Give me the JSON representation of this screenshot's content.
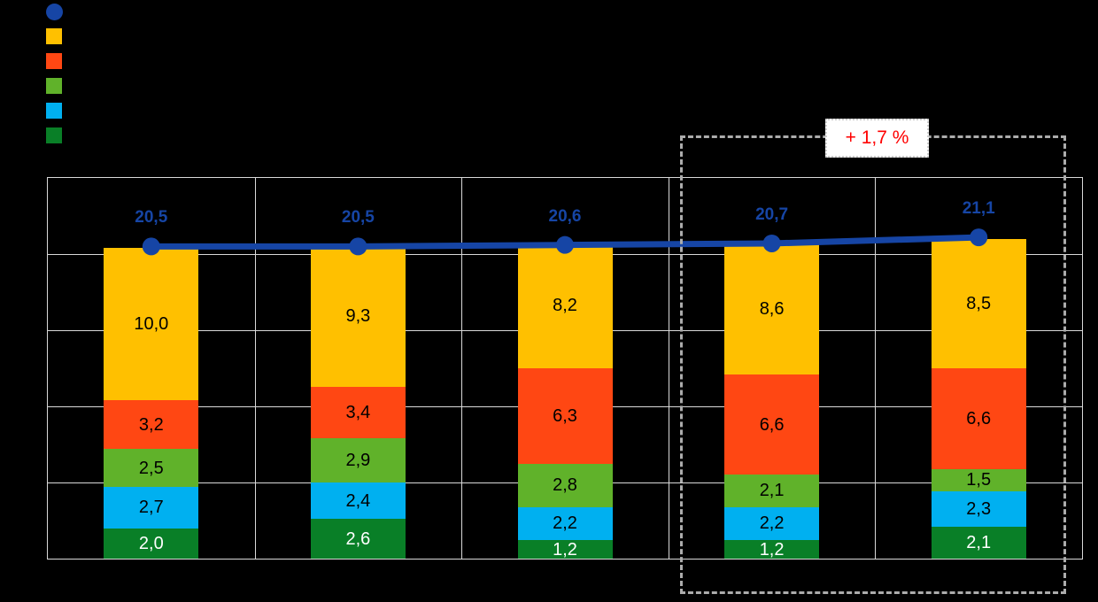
{
  "page": {
    "background": "#000000"
  },
  "legend": {
    "position": "top-left",
    "labels_visible": false,
    "items": [
      {
        "shape": "circle",
        "color": "#1645A5",
        "label": ""
      },
      {
        "shape": "square",
        "color": "#FFC000",
        "label": ""
      },
      {
        "shape": "square",
        "color": "#FF4713",
        "label": ""
      },
      {
        "shape": "square",
        "color": "#60B22A",
        "label": ""
      },
      {
        "shape": "square",
        "color": "#00B0F0",
        "label": ""
      },
      {
        "shape": "square",
        "color": "#097F27",
        "label": ""
      }
    ]
  },
  "annotation": {
    "text": "+ 1,7 %",
    "color": "#FF0000",
    "background": "#FFFFFF",
    "border_color": "#CCCCCC"
  },
  "highlight_box": {
    "border_color": "#ACACAC",
    "style": "dashed",
    "spans_categories": [
      4,
      5
    ]
  },
  "chart_data": {
    "type": "bar",
    "stacked": true,
    "title": "",
    "xlabel": "",
    "ylabel": "",
    "categories": [
      "",
      "",
      "",
      "",
      ""
    ],
    "category_labels_visible": false,
    "ylim": [
      0,
      25
    ],
    "grid": true,
    "grid_step": 5,
    "grid_color": "#D9D9D9",
    "stack_order": "bottom-to-top",
    "series": [
      {
        "name": "dark-green",
        "color": "#097F27",
        "label_color": "#FFFFFF",
        "values": [
          2.0,
          2.6,
          1.2,
          1.2,
          2.1
        ],
        "labels": [
          "2,0",
          "2,6",
          "1,2",
          "1,2",
          "2,1"
        ]
      },
      {
        "name": "light-blue",
        "color": "#00B0F0",
        "label_color": "#000000",
        "values": [
          2.7,
          2.4,
          2.2,
          2.2,
          2.3
        ],
        "labels": [
          "2,7",
          "2,4",
          "2,2",
          "2,2",
          "2,3"
        ]
      },
      {
        "name": "green",
        "color": "#60B22A",
        "label_color": "#000000",
        "values": [
          2.5,
          2.9,
          2.8,
          2.1,
          1.5
        ],
        "labels": [
          "2,5",
          "2,9",
          "2,8",
          "2,1",
          "1,5"
        ]
      },
      {
        "name": "orange",
        "color": "#FF4713",
        "label_color": "#000000",
        "values": [
          3.2,
          3.4,
          6.3,
          6.6,
          6.6
        ],
        "labels": [
          "3,2",
          "3,4",
          "6,3",
          "6,6",
          "6,6"
        ]
      },
      {
        "name": "yellow",
        "color": "#FFC000",
        "label_color": "#000000",
        "values": [
          10.0,
          9.3,
          8.2,
          8.6,
          8.5
        ],
        "labels": [
          "10,0",
          "9,3",
          "8,2",
          "8,6",
          "8,5"
        ]
      }
    ],
    "line": {
      "name": "total-line",
      "color": "#1645A5",
      "marker": "circle",
      "values": [
        20.5,
        20.5,
        20.6,
        20.7,
        21.1
      ],
      "labels": [
        "20,5",
        "20,5",
        "20,6",
        "20,7",
        "21,1"
      ]
    }
  }
}
